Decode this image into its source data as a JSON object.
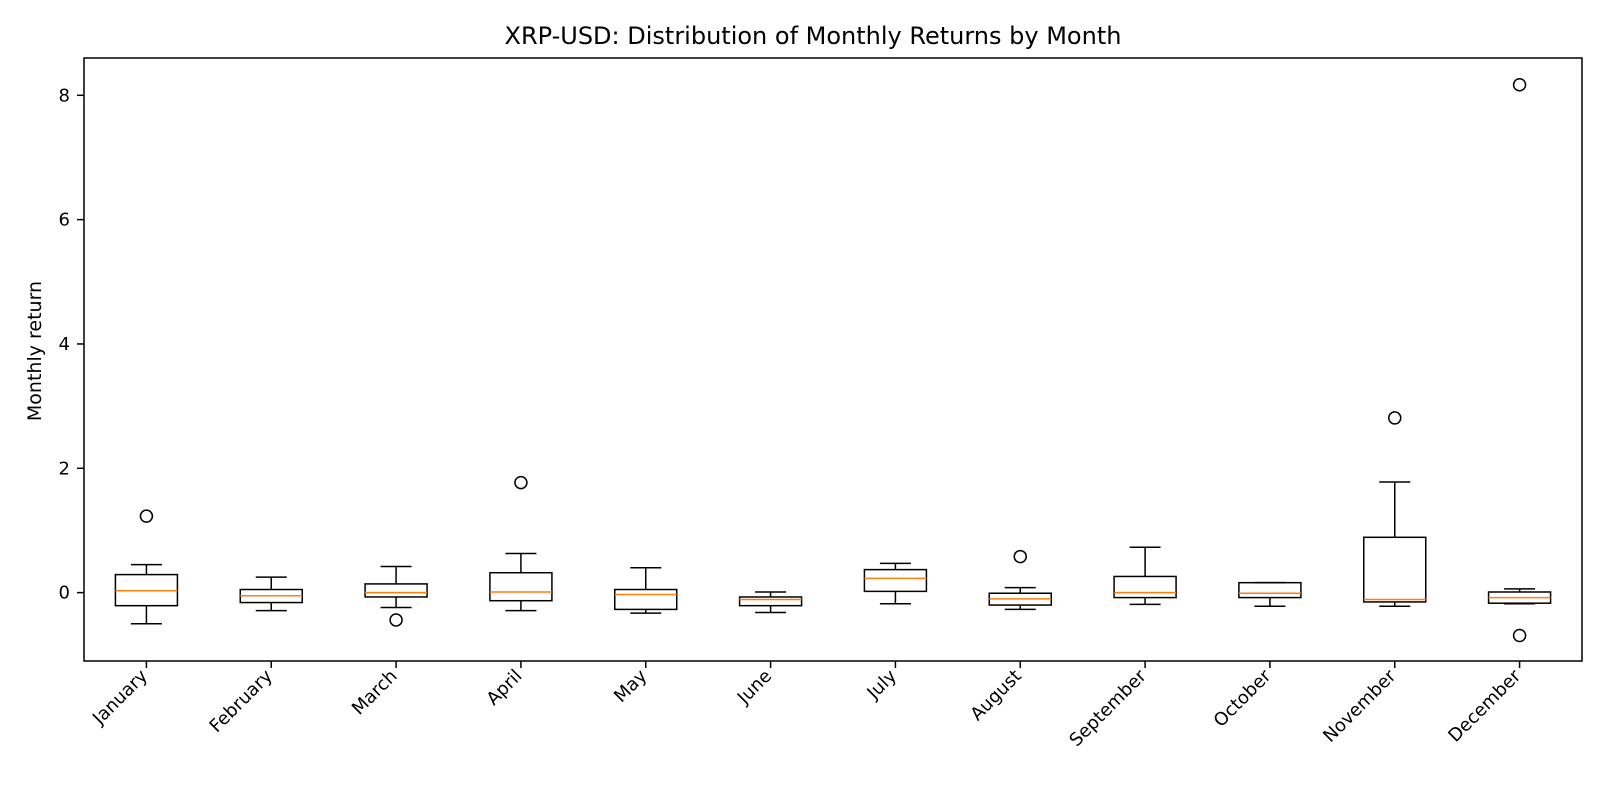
{
  "chart_data": {
    "type": "box",
    "title": "XRP-USD: Distribution of Monthly Returns by Month",
    "xlabel": "",
    "ylabel": "Monthly return",
    "ylim": [
      -1.1,
      8.6
    ],
    "yticks": [
      0,
      2,
      4,
      6,
      8
    ],
    "grid": false,
    "colors": {
      "box": "#000000",
      "median": "#ff7f0e",
      "background": "#ffffff"
    },
    "categories": [
      "January",
      "February",
      "March",
      "April",
      "May",
      "June",
      "July",
      "August",
      "September",
      "October",
      "November",
      "December"
    ],
    "boxes": [
      {
        "category": "January",
        "whisker_low": -0.5,
        "q1": -0.21,
        "median": 0.03,
        "q3": 0.29,
        "whisker_high": 0.45,
        "outliers": [
          1.23
        ]
      },
      {
        "category": "February",
        "whisker_low": -0.29,
        "q1": -0.16,
        "median": -0.05,
        "q3": 0.05,
        "whisker_high": 0.25,
        "outliers": []
      },
      {
        "category": "March",
        "whisker_low": -0.24,
        "q1": -0.07,
        "median": 0.0,
        "q3": 0.14,
        "whisker_high": 0.42,
        "outliers": [
          -0.44
        ]
      },
      {
        "category": "April",
        "whisker_low": -0.29,
        "q1": -0.13,
        "median": 0.01,
        "q3": 0.32,
        "whisker_high": 0.63,
        "outliers": [
          1.77
        ]
      },
      {
        "category": "May",
        "whisker_low": -0.33,
        "q1": -0.27,
        "median": -0.03,
        "q3": 0.05,
        "whisker_high": 0.4,
        "outliers": []
      },
      {
        "category": "June",
        "whisker_low": -0.32,
        "q1": -0.21,
        "median": -0.11,
        "q3": -0.07,
        "whisker_high": 0.01,
        "outliers": []
      },
      {
        "category": "July",
        "whisker_low": -0.18,
        "q1": 0.02,
        "median": 0.23,
        "q3": 0.37,
        "whisker_high": 0.47,
        "outliers": []
      },
      {
        "category": "August",
        "whisker_low": -0.27,
        "q1": -0.2,
        "median": -0.1,
        "q3": -0.01,
        "whisker_high": 0.08,
        "outliers": [
          0.58
        ]
      },
      {
        "category": "September",
        "whisker_low": -0.19,
        "q1": -0.08,
        "median": 0.0,
        "q3": 0.26,
        "whisker_high": 0.73,
        "outliers": []
      },
      {
        "category": "October",
        "whisker_low": -0.22,
        "q1": -0.08,
        "median": -0.01,
        "q3": 0.16,
        "whisker_high": 0.16,
        "outliers": []
      },
      {
        "category": "November",
        "whisker_low": -0.22,
        "q1": -0.15,
        "median": -0.11,
        "q3": 0.89,
        "whisker_high": 1.78,
        "outliers": [
          2.81
        ]
      },
      {
        "category": "December",
        "whisker_low": -0.18,
        "q1": -0.17,
        "median": -0.08,
        "q3": 0.01,
        "whisker_high": 0.06,
        "outliers": [
          8.17,
          -0.69
        ]
      }
    ]
  }
}
